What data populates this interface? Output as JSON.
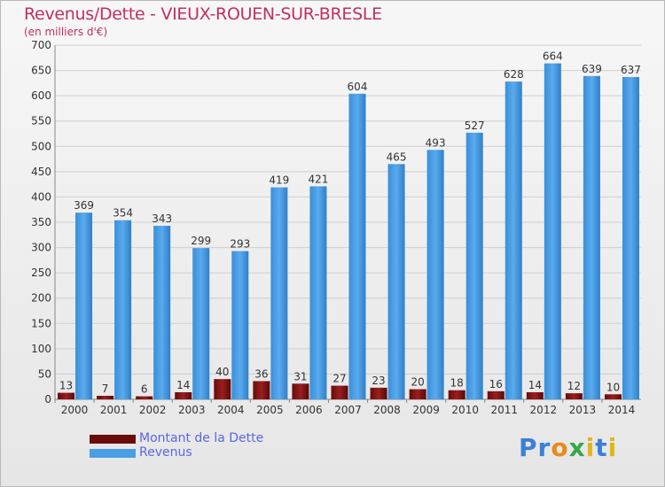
{
  "chart_data": {
    "type": "bar",
    "title": "Revenus/Dette - VIEUX-ROUEN-SUR-BRESLE",
    "subtitle": "(en milliers d'€)",
    "categories": [
      "2000",
      "2001",
      "2002",
      "2003",
      "2004",
      "2005",
      "2006",
      "2007",
      "2008",
      "2009",
      "2010",
      "2011",
      "2012",
      "2013",
      "2014"
    ],
    "series": [
      {
        "name": "Montant de la Dette",
        "color": "#7a0f0f",
        "values": [
          13,
          7,
          6,
          14,
          40,
          36,
          31,
          27,
          23,
          20,
          18,
          16,
          14,
          12,
          10
        ]
      },
      {
        "name": "Revenus",
        "color": "#4a9ee3",
        "values": [
          369,
          354,
          343,
          299,
          293,
          419,
          421,
          604,
          465,
          493,
          527,
          628,
          664,
          639,
          637
        ]
      }
    ],
    "ylim": [
      0,
      700
    ],
    "yticks": [
      0,
      50,
      100,
      150,
      200,
      250,
      300,
      350,
      400,
      450,
      500,
      550,
      600,
      650,
      700
    ],
    "grid": true,
    "legend_position": "bottom-left"
  },
  "logo": {
    "text": "Proxiti",
    "icon": "proxiti-logo"
  }
}
